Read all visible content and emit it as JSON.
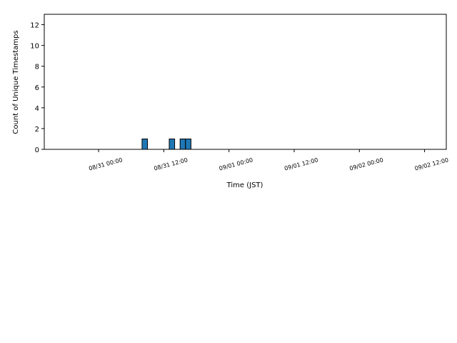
{
  "chart_data": {
    "type": "histogram",
    "x_label": "Time (JST)",
    "y_label": "Count of Unique Timestamps",
    "bins": [
      -6,
      -5,
      -4,
      -3,
      -2,
      -1,
      0,
      1,
      2,
      3,
      4,
      5,
      6,
      7,
      8,
      9,
      10,
      11,
      12,
      13,
      14,
      15,
      16,
      17,
      18,
      19,
      20,
      21,
      22,
      23,
      24,
      25,
      26,
      27,
      28,
      29,
      30,
      31,
      32,
      33,
      34,
      35,
      36,
      37,
      38,
      39,
      40,
      41,
      42,
      43,
      44,
      45,
      46,
      47,
      48,
      49,
      50,
      51,
      52,
      53,
      54,
      55,
      56,
      57,
      58,
      59,
      60,
      61,
      62
    ],
    "values": [
      0,
      0,
      0,
      0,
      0,
      0,
      0,
      0,
      0,
      0,
      0,
      0,
      0,
      0,
      1,
      0,
      0,
      0,
      0,
      1,
      0,
      1,
      1,
      0,
      0,
      0,
      0,
      0,
      0,
      0,
      0,
      0,
      0,
      0,
      0,
      0,
      0,
      0,
      0,
      0,
      0,
      0,
      0,
      0,
      0,
      0,
      0,
      0,
      0,
      0,
      0,
      0,
      0,
      0,
      0,
      0,
      0,
      0,
      0,
      0,
      0,
      0,
      0,
      0,
      0,
      0,
      0,
      0
    ],
    "color": "#1f77b4",
    "xlim": [
      -10,
      64
    ],
    "ylim": [
      0,
      13
    ],
    "xticks": [
      {
        "value": 0,
        "label": "08/31 00:00"
      },
      {
        "value": 12,
        "label": "08/31 12:00"
      },
      {
        "value": 24,
        "label": "09/01 00:00"
      },
      {
        "value": 36,
        "label": "09/01 12:00"
      },
      {
        "value": 48,
        "label": "09/02 00:00"
      },
      {
        "value": 60,
        "label": "09/02 12:00"
      }
    ],
    "yticks": [
      0,
      2,
      4,
      6,
      8,
      10,
      12
    ]
  }
}
